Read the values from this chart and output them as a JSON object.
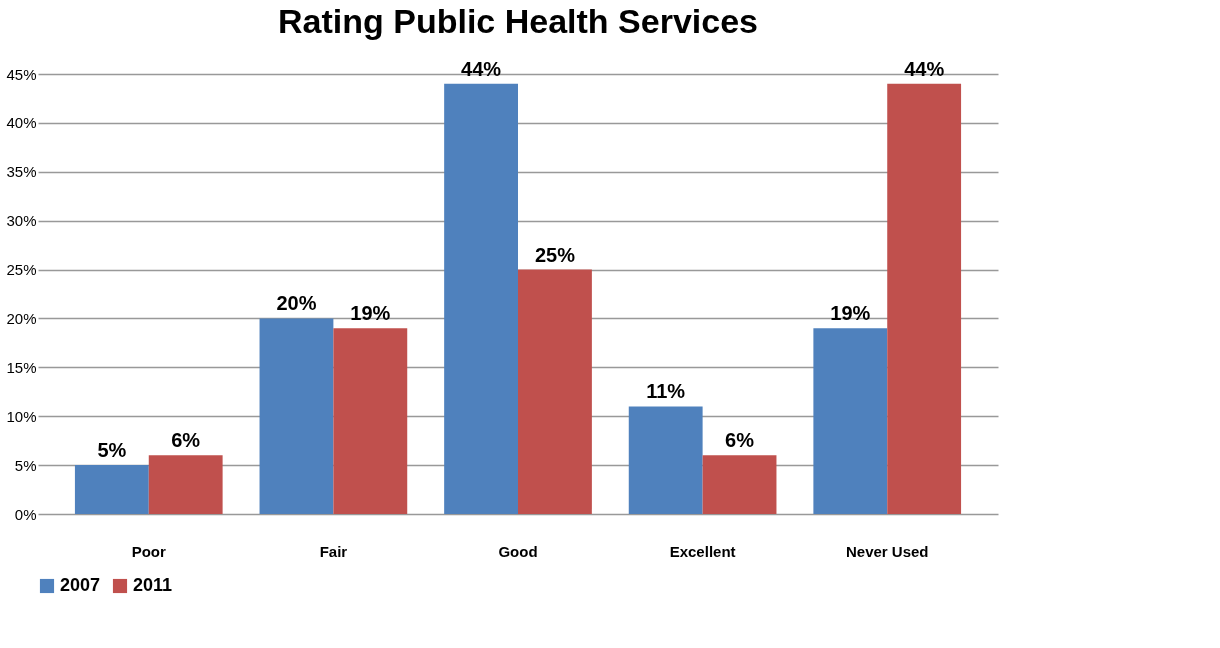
{
  "chart_data": {
    "type": "bar",
    "title": "Rating Public Health Services",
    "categories": [
      "Poor",
      "Fair",
      "Good",
      "Excellent",
      "Never Used"
    ],
    "series": [
      {
        "name": "2007",
        "color": "#4f81bd",
        "values": [
          5,
          20,
          44,
          11,
          19
        ],
        "value_labels": [
          "5%",
          "20%",
          "44%",
          "11%",
          "19%"
        ]
      },
      {
        "name": "2011",
        "color": "#c0504d",
        "values": [
          6,
          19,
          25,
          6,
          44
        ],
        "value_labels": [
          "6%",
          "19%",
          "25%",
          "6%",
          "44%"
        ]
      }
    ],
    "ylim": [
      0,
      45
    ],
    "yticks": [
      {
        "value": 0,
        "label": "0%"
      },
      {
        "value": 5,
        "label": "5%"
      },
      {
        "value": 10,
        "label": "10%"
      },
      {
        "value": 15,
        "label": "15%"
      },
      {
        "value": 20,
        "label": "20%"
      },
      {
        "value": 25,
        "label": "25%"
      },
      {
        "value": 30,
        "label": "30%"
      },
      {
        "value": 35,
        "label": "35%"
      },
      {
        "value": 40,
        "label": "40%"
      },
      {
        "value": 45,
        "label": "45%"
      }
    ],
    "grid": "y",
    "legend": "bottom"
  }
}
